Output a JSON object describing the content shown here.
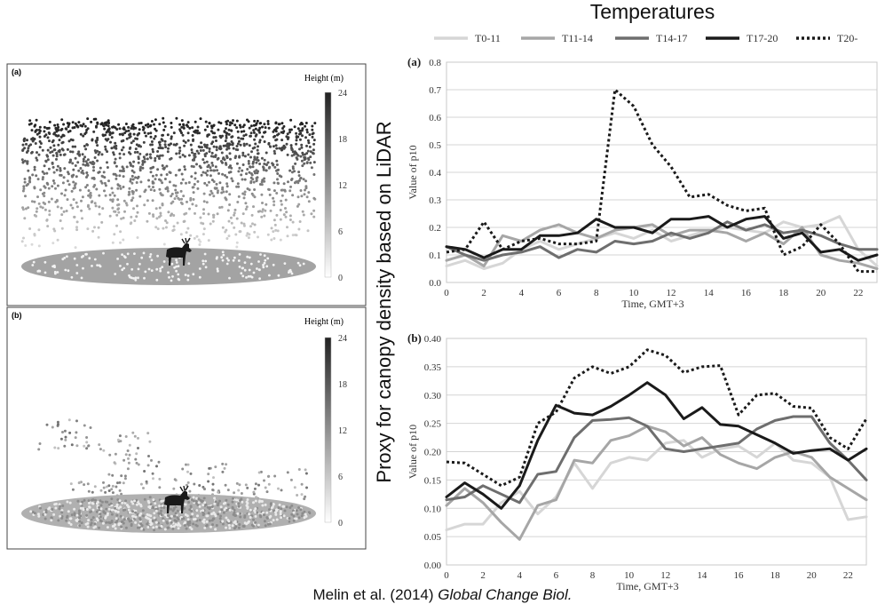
{
  "header": {
    "temperatures_title": "Temperatures",
    "proxy_label": "Proxy for canopy density based on LiDAR"
  },
  "citation": {
    "authors": "Melin et al. (2014) ",
    "journal": "Global Change Biol."
  },
  "lidar_panels": [
    {
      "label": "(a)",
      "legend_title": "Height (m)",
      "ticks": [
        "24",
        "18",
        "12",
        "6",
        "0"
      ]
    },
    {
      "label": "(b)",
      "legend_title": "Height (m)",
      "ticks": [
        "24",
        "18",
        "12",
        "6",
        "0"
      ]
    }
  ],
  "legend": [
    {
      "name": "T0-11",
      "color": "#d6d6d6",
      "dash": ""
    },
    {
      "name": "T11-14",
      "color": "#a6a6a6",
      "dash": ""
    },
    {
      "name": "T14-17",
      "color": "#6e6e6e",
      "dash": ""
    },
    {
      "name": "T17-20",
      "color": "#1a1a1a",
      "dash": ""
    },
    {
      "name": "T20-",
      "color": "#1a1a1a",
      "dash": "3,3"
    }
  ],
  "chart_data": [
    {
      "type": "line",
      "label": "(a)",
      "x": [
        0,
        1,
        2,
        3,
        4,
        5,
        6,
        7,
        8,
        9,
        10,
        11,
        12,
        13,
        14,
        15,
        16,
        17,
        18,
        19,
        20,
        21,
        22,
        23
      ],
      "xticks": [
        "0",
        "2",
        "4",
        "6",
        "8",
        "10",
        "12",
        "14",
        "16",
        "18",
        "20",
        "22"
      ],
      "yticks": [
        "0.0",
        "0.1",
        "0.2",
        "0.3",
        "0.4",
        "0.5",
        "0.6",
        "0.7",
        "0.8"
      ],
      "xlabel": "Time, GMT+3",
      "ylabel": "Value of p10",
      "ylim": [
        0,
        0.8
      ],
      "series": [
        {
          "name": "T0-11",
          "values": [
            0.06,
            0.08,
            0.05,
            0.07,
            0.12,
            0.15,
            0.12,
            0.14,
            0.16,
            0.18,
            0.16,
            0.19,
            0.15,
            0.17,
            0.19,
            0.2,
            0.19,
            0.18,
            0.22,
            0.2,
            0.21,
            0.24,
            0.12,
            0.06
          ]
        },
        {
          "name": "T11-14",
          "values": [
            0.08,
            0.1,
            0.06,
            0.17,
            0.15,
            0.19,
            0.21,
            0.18,
            0.16,
            0.19,
            0.2,
            0.21,
            0.17,
            0.19,
            0.19,
            0.18,
            0.15,
            0.18,
            0.14,
            0.2,
            0.1,
            0.08,
            0.07,
            0.05
          ]
        },
        {
          "name": "T14-17",
          "values": [
            0.13,
            0.1,
            0.08,
            0.1,
            0.11,
            0.13,
            0.09,
            0.12,
            0.11,
            0.15,
            0.14,
            0.15,
            0.18,
            0.16,
            0.18,
            0.22,
            0.19,
            0.21,
            0.18,
            0.19,
            0.17,
            0.14,
            0.12,
            0.12
          ]
        },
        {
          "name": "T17-20",
          "values": [
            0.13,
            0.12,
            0.09,
            0.12,
            0.12,
            0.17,
            0.17,
            0.18,
            0.23,
            0.2,
            0.2,
            0.18,
            0.23,
            0.23,
            0.24,
            0.2,
            0.23,
            0.24,
            0.16,
            0.18,
            0.11,
            0.12,
            0.08,
            0.1
          ]
        },
        {
          "name": "T20-",
          "values": [
            0.11,
            0.12,
            0.22,
            0.12,
            0.15,
            0.16,
            0.14,
            0.14,
            0.15,
            0.7,
            0.64,
            0.5,
            0.42,
            0.31,
            0.32,
            0.28,
            0.26,
            0.27,
            0.1,
            0.13,
            0.21,
            0.14,
            0.04,
            0.04
          ]
        }
      ]
    },
    {
      "type": "line",
      "label": "(b)",
      "x": [
        0,
        1,
        2,
        3,
        4,
        5,
        6,
        7,
        8,
        9,
        10,
        11,
        12,
        13,
        14,
        15,
        16,
        17,
        18,
        19,
        20,
        21,
        22,
        23
      ],
      "xticks": [
        "0",
        "2",
        "4",
        "6",
        "8",
        "10",
        "12",
        "14",
        "16",
        "18",
        "20",
        "22"
      ],
      "yticks": [
        "0.00",
        "0.05",
        "0.10",
        "0.15",
        "0.20",
        "0.25",
        "0.30",
        "0.35",
        "0.40"
      ],
      "xlabel": "Time, GMT+3",
      "ylabel": "Value of p10",
      "ylim": [
        0,
        0.4
      ],
      "series": [
        {
          "name": "T0-11",
          "values": [
            0.062,
            0.072,
            0.072,
            0.11,
            0.13,
            0.09,
            0.12,
            0.18,
            0.135,
            0.18,
            0.19,
            0.185,
            0.215,
            0.22,
            0.19,
            0.205,
            0.21,
            0.19,
            0.215,
            0.185,
            0.18,
            0.155,
            0.08,
            0.085
          ]
        },
        {
          "name": "T11-14",
          "values": [
            0.105,
            0.135,
            0.11,
            0.075,
            0.045,
            0.105,
            0.115,
            0.185,
            0.18,
            0.22,
            0.228,
            0.245,
            0.235,
            0.21,
            0.225,
            0.195,
            0.18,
            0.17,
            0.19,
            0.2,
            0.19,
            0.155,
            0.135,
            0.115
          ]
        },
        {
          "name": "T14-17",
          "values": [
            0.115,
            0.12,
            0.14,
            0.125,
            0.11,
            0.16,
            0.165,
            0.225,
            0.255,
            0.257,
            0.26,
            0.245,
            0.205,
            0.2,
            0.205,
            0.21,
            0.215,
            0.24,
            0.255,
            0.262,
            0.262,
            0.215,
            0.185,
            0.15
          ]
        },
        {
          "name": "T17-20",
          "values": [
            0.12,
            0.145,
            0.125,
            0.1,
            0.14,
            0.22,
            0.282,
            0.268,
            0.265,
            0.28,
            0.3,
            0.322,
            0.3,
            0.258,
            0.278,
            0.248,
            0.245,
            0.23,
            0.215,
            0.197,
            0.202,
            0.205,
            0.185,
            0.205
          ]
        },
        {
          "name": "T20-",
          "values": [
            0.182,
            0.18,
            0.16,
            0.14,
            0.155,
            0.25,
            0.27,
            0.33,
            0.35,
            0.338,
            0.35,
            0.38,
            0.37,
            0.34,
            0.35,
            0.352,
            0.265,
            0.3,
            0.303,
            0.28,
            0.277,
            0.225,
            0.205,
            0.258
          ]
        }
      ]
    }
  ]
}
